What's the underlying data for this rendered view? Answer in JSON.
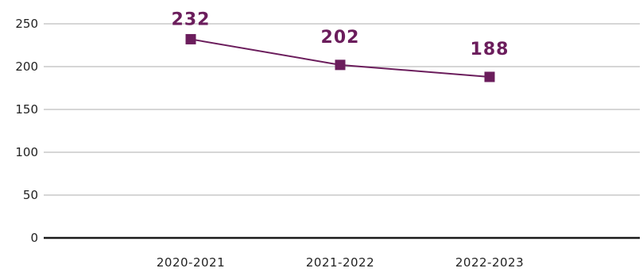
{
  "chart_data": {
    "type": "line",
    "categories": [
      "2020-2021",
      "2021-2022",
      "2022-2023"
    ],
    "series": [
      {
        "values": [
          232,
          202,
          188
        ]
      }
    ],
    "data_labels": [
      "232",
      "202",
      "188"
    ],
    "y_ticks": [
      0,
      50,
      100,
      150,
      200,
      250
    ],
    "y_tick_labels": [
      "0",
      "50",
      "100",
      "150",
      "200",
      "250"
    ],
    "ylim": [
      0,
      250
    ],
    "title": "",
    "xlabel": "",
    "ylabel": "",
    "grid": true,
    "legend": "none",
    "colors": {
      "series": "#6b1d5c",
      "grid": "#c8c8c8",
      "axis": "#1a1a1a"
    }
  }
}
